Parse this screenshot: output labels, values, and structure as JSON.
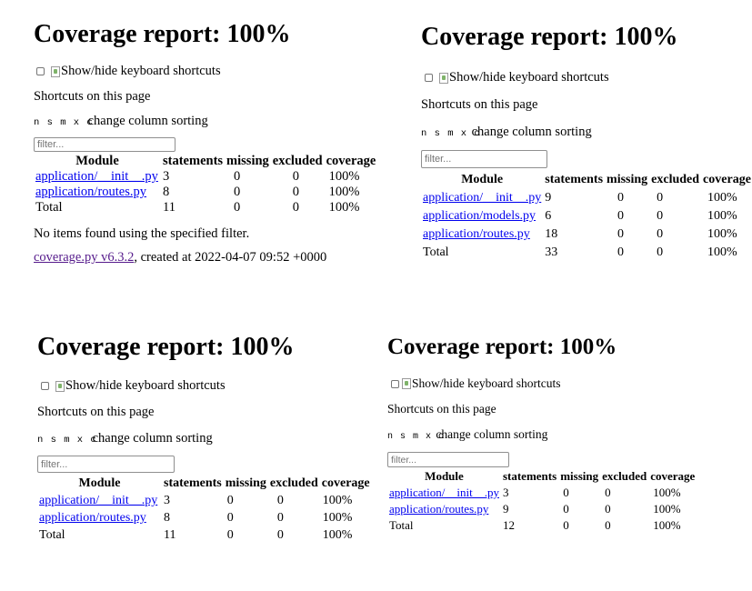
{
  "reports": [
    {
      "title": "Coverage report: 100%",
      "shortcuts_toggle_label": "Show/hide keyboard shortcuts",
      "shortcuts_heading": "Shortcuts on this page",
      "sort_keys": "n s m x c",
      "sort_label": "change column sorting",
      "filter_placeholder": "filter...",
      "columns": [
        "Module",
        "statements",
        "missing",
        "excluded",
        "coverage"
      ],
      "rows": [
        {
          "module": "application/__init__.py",
          "statements": "3",
          "missing": "0",
          "excluded": "0",
          "coverage": "100%"
        },
        {
          "module": "application/routes.py",
          "statements": "8",
          "missing": "0",
          "excluded": "0",
          "coverage": "100%"
        }
      ],
      "total": {
        "label": "Total",
        "statements": "11",
        "missing": "0",
        "excluded": "0",
        "coverage": "100%"
      },
      "no_items_text": "No items found using the specified filter.",
      "footer_link": "coverage.py v6.3.2",
      "footer_text": ", created at 2022-04-07 09:52 +0000"
    },
    {
      "title": "Coverage report: 100%",
      "shortcuts_toggle_label": "Show/hide keyboard shortcuts",
      "shortcuts_heading": "Shortcuts on this page",
      "sort_keys": "n s m x c",
      "sort_label": "change column sorting",
      "filter_placeholder": "filter...",
      "columns": [
        "Module",
        "statements",
        "missing",
        "excluded",
        "coverage"
      ],
      "rows": [
        {
          "module": "application/__init__.py",
          "statements": "9",
          "missing": "0",
          "excluded": "0",
          "coverage": "100%"
        },
        {
          "module": "application/models.py",
          "statements": "6",
          "missing": "0",
          "excluded": "0",
          "coverage": "100%"
        },
        {
          "module": "application/routes.py",
          "statements": "18",
          "missing": "0",
          "excluded": "0",
          "coverage": "100%"
        }
      ],
      "total": {
        "label": "Total",
        "statements": "33",
        "missing": "0",
        "excluded": "0",
        "coverage": "100%"
      }
    },
    {
      "title": "Coverage report: 100%",
      "shortcuts_toggle_label": "Show/hide keyboard shortcuts",
      "shortcuts_heading": "Shortcuts on this page",
      "sort_keys": "n s m x c",
      "sort_label": "change column sorting",
      "filter_placeholder": "filter...",
      "columns": [
        "Module",
        "statements",
        "missing",
        "excluded",
        "coverage"
      ],
      "rows": [
        {
          "module": "application/__init__.py",
          "statements": "3",
          "missing": "0",
          "excluded": "0",
          "coverage": "100%"
        },
        {
          "module": "application/routes.py",
          "statements": "8",
          "missing": "0",
          "excluded": "0",
          "coverage": "100%"
        }
      ],
      "total": {
        "label": "Total",
        "statements": "11",
        "missing": "0",
        "excluded": "0",
        "coverage": "100%"
      }
    },
    {
      "title": "Coverage report: 100%",
      "shortcuts_toggle_label": "Show/hide keyboard shortcuts",
      "shortcuts_heading": "Shortcuts on this page",
      "sort_keys": "n s m x c",
      "sort_label": "change column sorting",
      "filter_placeholder": "filter...",
      "columns": [
        "Module",
        "statements",
        "missing",
        "excluded",
        "coverage"
      ],
      "rows": [
        {
          "module": "application/__init__.py",
          "statements": "3",
          "missing": "0",
          "excluded": "0",
          "coverage": "100%"
        },
        {
          "module": "application/routes.py",
          "statements": "9",
          "missing": "0",
          "excluded": "0",
          "coverage": "100%"
        }
      ],
      "total": {
        "label": "Total",
        "statements": "12",
        "missing": "0",
        "excluded": "0",
        "coverage": "100%"
      }
    }
  ]
}
